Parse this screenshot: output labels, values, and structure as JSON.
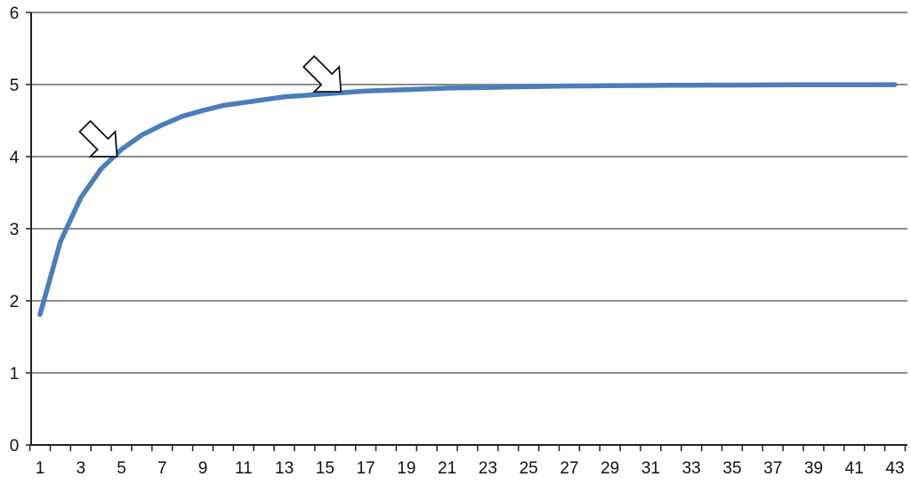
{
  "chart_data": {
    "type": "line",
    "title": "",
    "xlabel": "",
    "ylabel": "",
    "x": [
      1,
      2,
      3,
      4,
      5,
      6,
      7,
      8,
      9,
      10,
      11,
      12,
      13,
      14,
      15,
      16,
      17,
      18,
      19,
      20,
      21,
      22,
      23,
      24,
      25,
      26,
      27,
      28,
      29,
      30,
      31,
      32,
      33,
      34,
      35,
      36,
      37,
      38,
      39,
      40,
      41,
      42,
      43
    ],
    "series": [
      {
        "values": [
          1.81,
          2.82,
          3.43,
          3.83,
          4.1,
          4.3,
          4.44,
          4.56,
          4.64,
          4.71,
          4.75,
          4.79,
          4.83,
          4.85,
          4.87,
          4.89,
          4.91,
          4.92,
          4.93,
          4.94,
          4.95,
          4.955,
          4.96,
          4.965,
          4.97,
          4.975,
          4.98,
          4.982,
          4.984,
          4.986,
          4.988,
          4.99,
          4.99,
          4.992,
          4.993,
          4.994,
          4.995,
          4.996,
          4.996,
          4.997,
          4.998,
          4.998,
          4.999
        ]
      }
    ],
    "xticklabels": [
      "1",
      "3",
      "5",
      "7",
      "9",
      "11",
      "13",
      "15",
      "17",
      "19",
      "21",
      "23",
      "25",
      "27",
      "29",
      "31",
      "33",
      "35",
      "37",
      "39",
      "41",
      "43"
    ],
    "yticklabels": [
      "0",
      "1",
      "2",
      "3",
      "4",
      "5",
      "6"
    ],
    "ylim": [
      0,
      6
    ],
    "xlim": [
      1,
      43
    ],
    "grid": "horizontal",
    "legend": "none",
    "annotations": [
      {
        "type": "arrow",
        "x": 5,
        "y": 4.0
      },
      {
        "type": "arrow",
        "x": 16,
        "y": 4.9
      }
    ],
    "colors": {
      "line": "#4a7ebb",
      "grid": "#8c8c8c",
      "axis": "#222222"
    }
  }
}
